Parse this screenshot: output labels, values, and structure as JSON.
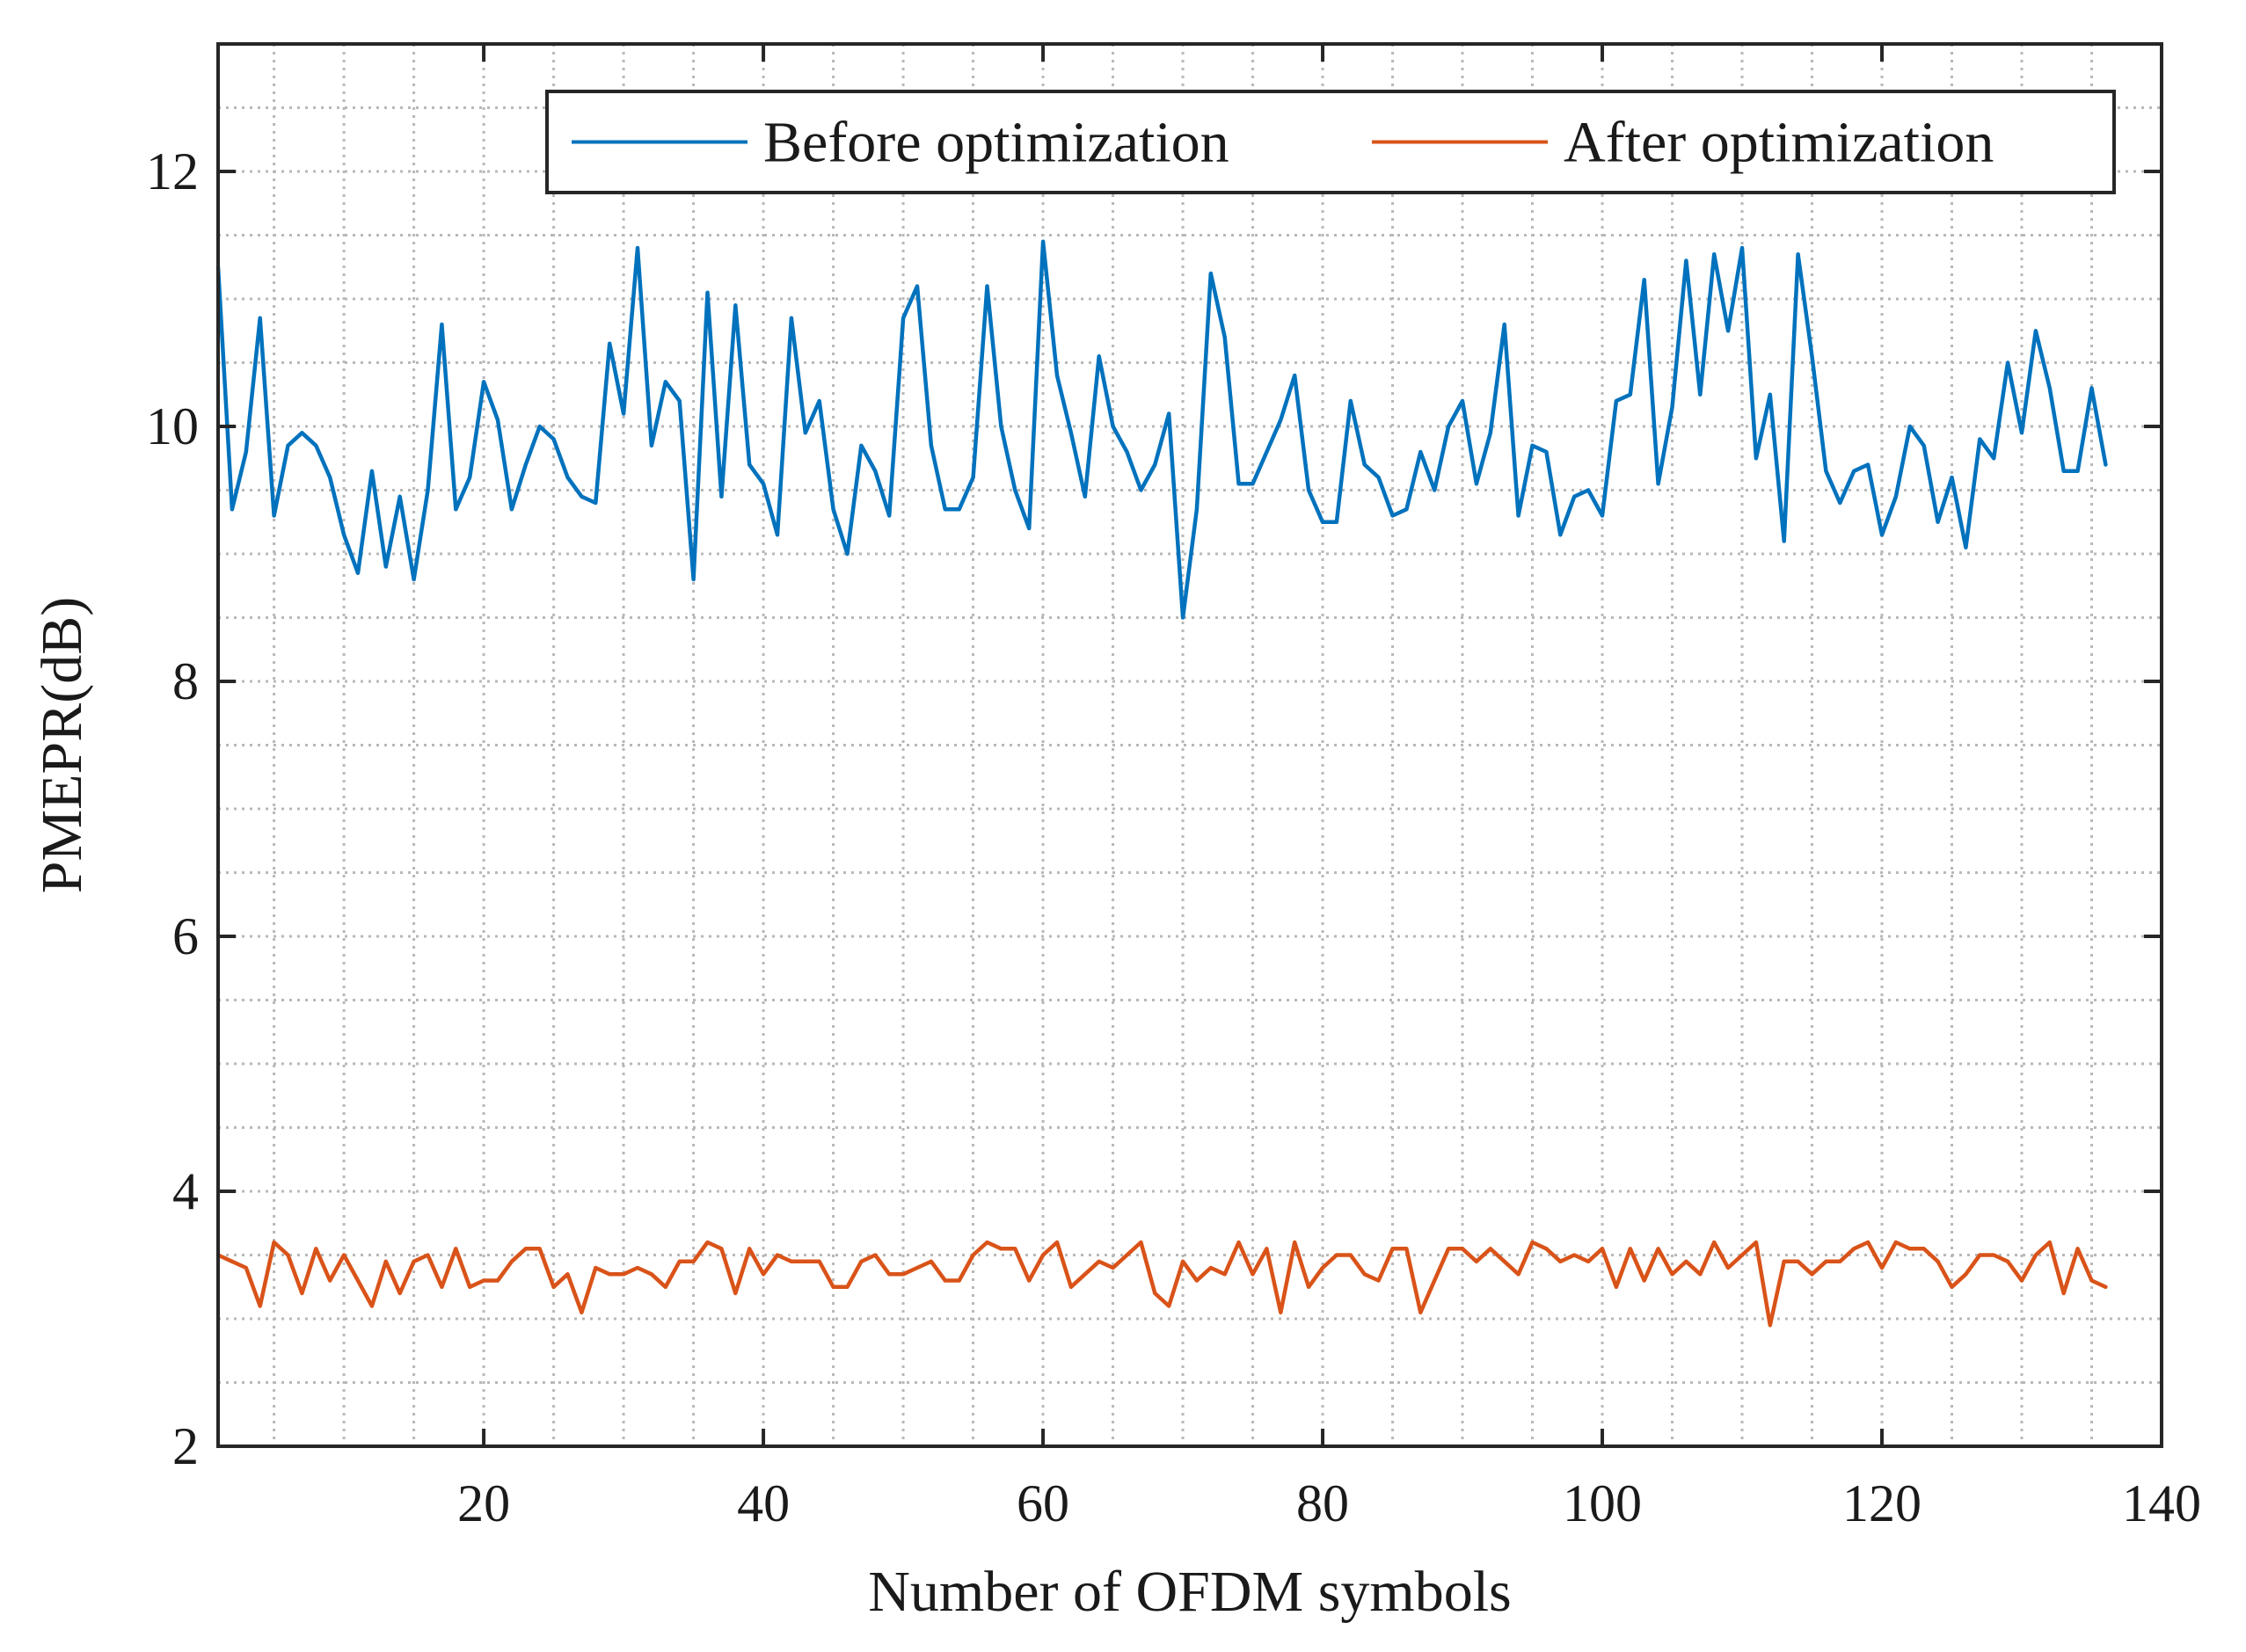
{
  "chart_data": {
    "type": "line",
    "title": "",
    "xlabel": "Number of OFDM symbols",
    "ylabel": "PMEPR(dB)",
    "xlim": [
      1,
      140
    ],
    "ylim": [
      2,
      13
    ],
    "xticks": [
      20,
      40,
      60,
      80,
      100,
      120,
      140
    ],
    "yticks": [
      2,
      4,
      6,
      8,
      10,
      12
    ],
    "xtick_labels": [
      "20",
      "40",
      "60",
      "80",
      "100",
      "120",
      "140"
    ],
    "ytick_labels": [
      "2",
      "4",
      "6",
      "8",
      "10",
      "12"
    ],
    "minor_x_step": 5,
    "minor_y_step": 0.5,
    "grid": true,
    "legend_position": "top-right",
    "series": [
      {
        "name": "Before optimization",
        "color": "#0072BD",
        "x": [
          1,
          2,
          3,
          4,
          5,
          6,
          7,
          8,
          9,
          10,
          11,
          12,
          13,
          14,
          15,
          16,
          17,
          18,
          19,
          20,
          21,
          22,
          23,
          24,
          25,
          26,
          27,
          28,
          29,
          30,
          31,
          32,
          33,
          34,
          35,
          36,
          37,
          38,
          39,
          40,
          41,
          42,
          43,
          44,
          45,
          46,
          47,
          48,
          49,
          50,
          51,
          52,
          53,
          54,
          55,
          56,
          57,
          58,
          59,
          60,
          61,
          62,
          63,
          64,
          65,
          66,
          67,
          68,
          69,
          70,
          71,
          72,
          73,
          74,
          75,
          76,
          77,
          78,
          79,
          80,
          81,
          82,
          83,
          84,
          85,
          86,
          87,
          88,
          89,
          90,
          91,
          92,
          93,
          94,
          95,
          96,
          97,
          98,
          99,
          100,
          101,
          102,
          103,
          104,
          105,
          106,
          107,
          108,
          109,
          110,
          111,
          112,
          113,
          114,
          115,
          116,
          117,
          118,
          119,
          120,
          121,
          122,
          123,
          124,
          125,
          126,
          127,
          128,
          129,
          130,
          131,
          132,
          133,
          134,
          135,
          136
        ],
        "values": [
          11.25,
          9.35,
          9.8,
          10.85,
          9.3,
          9.85,
          9.95,
          9.85,
          9.6,
          9.15,
          8.85,
          9.65,
          8.9,
          9.45,
          8.8,
          9.5,
          10.8,
          9.35,
          9.6,
          10.35,
          10.05,
          9.35,
          9.7,
          10.0,
          9.9,
          9.6,
          9.45,
          9.4,
          10.65,
          10.1,
          11.4,
          9.85,
          10.35,
          10.2,
          8.8,
          11.05,
          9.45,
          10.95,
          9.7,
          9.55,
          9.15,
          10.85,
          9.95,
          10.2,
          9.35,
          9.0,
          9.85,
          9.65,
          9.3,
          10.85,
          11.1,
          9.85,
          9.35,
          9.35,
          9.6,
          11.1,
          10.0,
          9.5,
          9.2,
          11.45,
          10.4,
          9.95,
          9.45,
          10.55,
          10.0,
          9.8,
          9.5,
          9.7,
          10.1,
          8.5,
          9.35,
          11.2,
          10.7,
          9.55,
          9.55,
          9.8,
          10.05,
          10.4,
          9.5,
          9.25,
          9.25,
          10.2,
          9.7,
          9.6,
          9.3,
          9.35,
          9.8,
          9.5,
          10.0,
          10.2,
          9.55,
          9.95,
          10.8,
          9.3,
          9.85,
          9.8,
          9.15,
          9.45,
          9.5,
          9.3,
          10.2,
          10.25,
          11.15,
          9.55,
          10.15,
          11.3,
          10.25,
          11.35,
          10.75,
          11.4,
          9.75,
          10.25,
          9.1,
          11.35,
          10.55,
          9.65,
          9.4,
          9.65,
          9.7,
          9.15,
          9.45,
          10.0,
          9.85,
          9.25,
          9.6,
          9.05,
          9.9,
          9.75,
          10.5,
          9.95,
          10.75,
          10.3,
          9.65,
          9.65,
          10.3,
          9.7
        ]
      },
      {
        "name": "After optimization",
        "color": "#D95319",
        "x": [
          1,
          2,
          3,
          4,
          5,
          6,
          7,
          8,
          9,
          10,
          11,
          12,
          13,
          14,
          15,
          16,
          17,
          18,
          19,
          20,
          21,
          22,
          23,
          24,
          25,
          26,
          27,
          28,
          29,
          30,
          31,
          32,
          33,
          34,
          35,
          36,
          37,
          38,
          39,
          40,
          41,
          42,
          43,
          44,
          45,
          46,
          47,
          48,
          49,
          50,
          51,
          52,
          53,
          54,
          55,
          56,
          57,
          58,
          59,
          60,
          61,
          62,
          63,
          64,
          65,
          66,
          67,
          68,
          69,
          70,
          71,
          72,
          73,
          74,
          75,
          76,
          77,
          78,
          79,
          80,
          81,
          82,
          83,
          84,
          85,
          86,
          87,
          88,
          89,
          90,
          91,
          92,
          93,
          94,
          95,
          96,
          97,
          98,
          99,
          100,
          101,
          102,
          103,
          104,
          105,
          106,
          107,
          108,
          109,
          110,
          111,
          112,
          113,
          114,
          115,
          116,
          117,
          118,
          119,
          120,
          121,
          122,
          123,
          124,
          125,
          126,
          127,
          128,
          129,
          130,
          131,
          132,
          133,
          134,
          135,
          136
        ],
        "values": [
          3.5,
          3.45,
          3.4,
          3.1,
          3.6,
          3.5,
          3.2,
          3.55,
          3.3,
          3.5,
          3.3,
          3.1,
          3.45,
          3.2,
          3.45,
          3.5,
          3.25,
          3.55,
          3.25,
          3.3,
          3.3,
          3.45,
          3.55,
          3.55,
          3.25,
          3.35,
          3.05,
          3.4,
          3.35,
          3.35,
          3.4,
          3.35,
          3.25,
          3.45,
          3.45,
          3.6,
          3.55,
          3.2,
          3.55,
          3.35,
          3.5,
          3.45,
          3.45,
          3.45,
          3.25,
          3.25,
          3.45,
          3.5,
          3.35,
          3.35,
          3.4,
          3.45,
          3.3,
          3.3,
          3.5,
          3.6,
          3.55,
          3.55,
          3.3,
          3.5,
          3.6,
          3.25,
          3.35,
          3.45,
          3.4,
          3.5,
          3.6,
          3.2,
          3.1,
          3.45,
          3.3,
          3.4,
          3.35,
          3.6,
          3.35,
          3.55,
          3.05,
          3.6,
          3.25,
          3.4,
          3.5,
          3.5,
          3.35,
          3.3,
          3.55,
          3.55,
          3.05,
          3.3,
          3.55,
          3.55,
          3.45,
          3.55,
          3.45,
          3.35,
          3.6,
          3.55,
          3.45,
          3.5,
          3.45,
          3.55,
          3.25,
          3.55,
          3.3,
          3.55,
          3.35,
          3.45,
          3.35,
          3.6,
          3.4,
          3.5,
          3.6,
          2.95,
          3.45,
          3.45,
          3.35,
          3.45,
          3.45,
          3.55,
          3.6,
          3.4,
          3.6,
          3.55,
          3.55,
          3.45,
          3.25,
          3.35,
          3.5,
          3.5,
          3.45,
          3.3,
          3.5,
          3.6,
          3.2,
          3.55,
          3.3,
          3.25
        ]
      }
    ]
  }
}
